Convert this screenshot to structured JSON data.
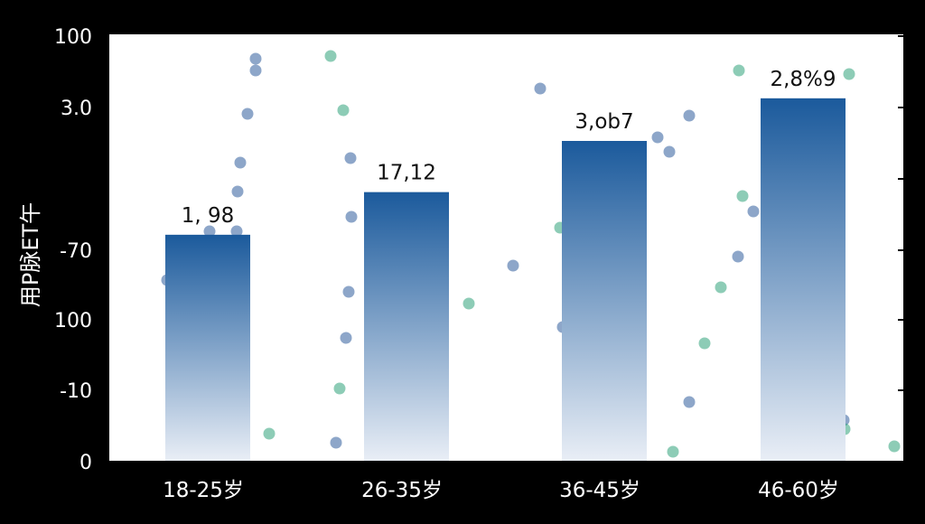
{
  "chart_data": {
    "type": "bar",
    "title": "",
    "ylabel": "用P脉ET午",
    "xlabel": "",
    "categories": [
      "18-25岁",
      "26-35岁",
      "36-45岁",
      "46-60岁"
    ],
    "y_tick_labels": [
      "100",
      "3.0",
      "",
      "-70",
      "100",
      "-10",
      "0"
    ],
    "bar_labels": [
      "1, 98",
      "17,12",
      "3,ob7",
      "2,8%9"
    ],
    "values": [
      0.53,
      0.63,
      0.75,
      0.85
    ],
    "value_note_unit": "fraction of axis height (tick labels are illegible)",
    "grid": false,
    "legend": "none",
    "colors": {
      "background": "#000000",
      "plot_bg": "#ffffff",
      "bar_top": "#1b5a9c",
      "bar_bottom": "#e9eef6",
      "dot_blue": "#2f5d9c",
      "dot_green": "#2fa27a",
      "axis_text": "#ffffff",
      "label_text": "#111111"
    }
  }
}
